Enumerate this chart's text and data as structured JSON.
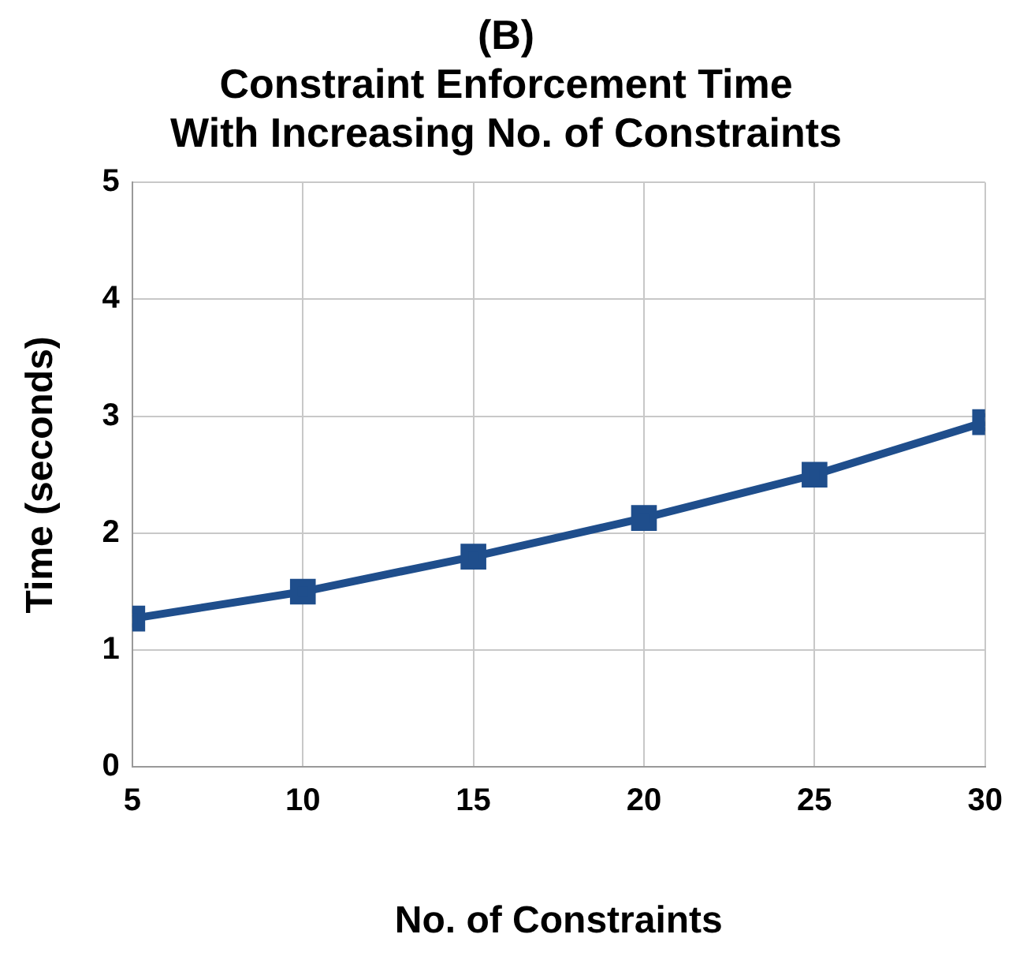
{
  "chart_data": {
    "type": "line",
    "title": "(B)\nConstraint Enforcement Time\nWith Increasing No. of Constraints",
    "xlabel": "No. of Constraints",
    "ylabel": "Time (seconds)",
    "x": [
      5,
      10,
      15,
      20,
      25,
      30
    ],
    "series": [
      {
        "color": "#1f4e8c",
        "values": [
          1.27,
          1.5,
          1.8,
          2.13,
          2.5,
          2.95
        ]
      }
    ],
    "xlim": [
      5,
      30
    ],
    "xticks": [
      5,
      10,
      15,
      20,
      25,
      30
    ],
    "ylim": [
      0,
      5
    ],
    "yticks": [
      0,
      1,
      2,
      3,
      4,
      5
    ],
    "grid": true,
    "legend": false,
    "marker": "square",
    "line_style": "solid"
  }
}
